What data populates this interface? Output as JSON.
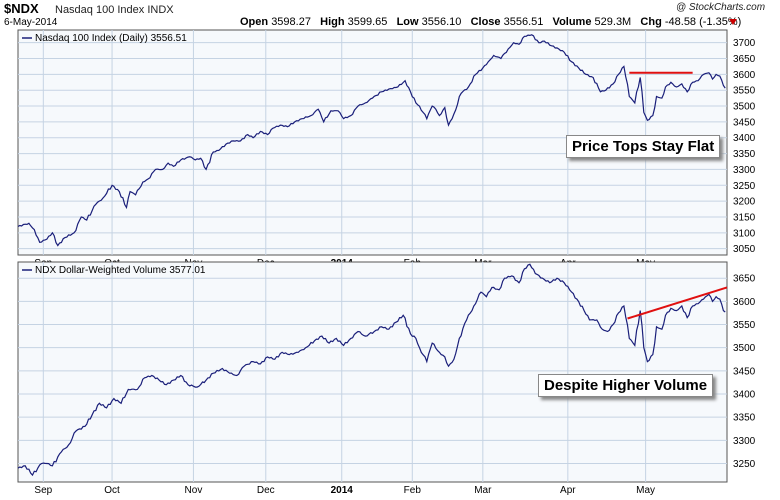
{
  "header": {
    "symbol": "$NDX",
    "name": "Nasdaq 100 Index",
    "exchange": "INDX",
    "date": "6-May-2014",
    "open_label": "Open",
    "open": "3598.27",
    "high_label": "High",
    "high": "3599.65",
    "low_label": "Low",
    "low": "3556.10",
    "close_label": "Close",
    "close": "3556.51",
    "volume_label": "Volume",
    "volume": "529.3M",
    "chg_label": "Chg",
    "chg": "-48.58 (-1.35%)",
    "watermark": "@ StockCharts.com"
  },
  "colors": {
    "grid": "#c5d3e3",
    "panel_bg": "#f6f9fc",
    "line": "#1a1f7a",
    "trend": "#e01010",
    "chg": "#cc0000"
  },
  "annotations": {
    "price": "Price Tops Stay Flat",
    "volume": "Despite Higher Volume"
  },
  "chart_data": [
    {
      "type": "line",
      "legend": "Nasdaq 100 Index (Daily) 3556.51",
      "x_label_days": [
        "Sep",
        "Oct",
        "Nov",
        "Dec",
        "2014",
        "Feb",
        "Mar",
        "Apr",
        "May"
      ],
      "x_label_idx": [
        14,
        52,
        97,
        137,
        179,
        218,
        257,
        304,
        347
      ],
      "ylim": [
        3030,
        3740
      ],
      "yticks": [
        3050,
        3100,
        3150,
        3200,
        3250,
        3300,
        3350,
        3400,
        3450,
        3500,
        3550,
        3600,
        3650,
        3700
      ],
      "trendline": {
        "x": [
          338,
          373
        ],
        "y": [
          3605,
          3605
        ]
      },
      "anchors": [
        [
          0,
          3120
        ],
        [
          6,
          3130
        ],
        [
          9,
          3110
        ],
        [
          12,
          3070
        ],
        [
          16,
          3080
        ],
        [
          19,
          3100
        ],
        [
          22,
          3060
        ],
        [
          26,
          3085
        ],
        [
          31,
          3100
        ],
        [
          35,
          3150
        ],
        [
          38,
          3140
        ],
        [
          43,
          3190
        ],
        [
          47,
          3210
        ],
        [
          52,
          3250
        ],
        [
          56,
          3230
        ],
        [
          60,
          3180
        ],
        [
          62,
          3230
        ],
        [
          65,
          3220
        ],
        [
          69,
          3260
        ],
        [
          72,
          3270
        ],
        [
          76,
          3300
        ],
        [
          80,
          3300
        ],
        [
          83,
          3320
        ],
        [
          86,
          3310
        ],
        [
          90,
          3330
        ],
        [
          95,
          3340
        ],
        [
          98,
          3330
        ],
        [
          101,
          3335
        ],
        [
          104,
          3300
        ],
        [
          108,
          3355
        ],
        [
          111,
          3360
        ],
        [
          115,
          3380
        ],
        [
          119,
          3390
        ],
        [
          123,
          3390
        ],
        [
          127,
          3410
        ],
        [
          130,
          3400
        ],
        [
          134,
          3420
        ],
        [
          138,
          3410
        ],
        [
          141,
          3430
        ],
        [
          145,
          3440
        ],
        [
          149,
          3435
        ],
        [
          153,
          3450
        ],
        [
          157,
          3460
        ],
        [
          162,
          3470
        ],
        [
          166,
          3490
        ],
        [
          169,
          3450
        ],
        [
          173,
          3485
        ],
        [
          177,
          3485
        ],
        [
          180,
          3460
        ],
        [
          184,
          3470
        ],
        [
          188,
          3500
        ],
        [
          192,
          3510
        ],
        [
          196,
          3525
        ],
        [
          201,
          3545
        ],
        [
          206,
          3555
        ],
        [
          210,
          3560
        ],
        [
          214,
          3580
        ],
        [
          217,
          3545
        ],
        [
          220,
          3510
        ],
        [
          222,
          3500
        ],
        [
          226,
          3460
        ],
        [
          229,
          3500
        ],
        [
          231,
          3490
        ],
        [
          233,
          3470
        ],
        [
          236,
          3495
        ],
        [
          238,
          3440
        ],
        [
          241,
          3475
        ],
        [
          245,
          3540
        ],
        [
          249,
          3560
        ],
        [
          253,
          3600
        ],
        [
          257,
          3620
        ],
        [
          260,
          3640
        ],
        [
          263,
          3660
        ],
        [
          267,
          3650
        ],
        [
          271,
          3680
        ],
        [
          274,
          3700
        ],
        [
          277,
          3695
        ],
        [
          280,
          3720
        ],
        [
          284,
          3725
        ],
        [
          288,
          3700
        ],
        [
          291,
          3705
        ],
        [
          295,
          3690
        ],
        [
          299,
          3680
        ],
        [
          302,
          3670
        ],
        [
          306,
          3640
        ],
        [
          310,
          3620
        ],
        [
          314,
          3600
        ],
        [
          318,
          3590
        ],
        [
          322,
          3545
        ],
        [
          325,
          3550
        ],
        [
          329,
          3570
        ],
        [
          332,
          3600
        ],
        [
          335,
          3625
        ],
        [
          338,
          3530
        ],
        [
          341,
          3510
        ],
        [
          344,
          3590
        ],
        [
          346,
          3480
        ],
        [
          348,
          3455
        ],
        [
          351,
          3470
        ],
        [
          353,
          3530
        ],
        [
          356,
          3525
        ],
        [
          358,
          3560
        ],
        [
          361,
          3575
        ],
        [
          364,
          3560
        ],
        [
          367,
          3570
        ],
        [
          370,
          3545
        ],
        [
          373,
          3575
        ],
        [
          376,
          3580
        ],
        [
          379,
          3600
        ],
        [
          382,
          3605
        ],
        [
          384,
          3585
        ],
        [
          386,
          3600
        ],
        [
          388,
          3595
        ],
        [
          390,
          3565
        ],
        [
          391,
          3556.51
        ]
      ]
    },
    {
      "type": "line",
      "legend": "NDX Dollar-Weighted Volume 3577.01",
      "x_label_days": [
        "Sep",
        "Oct",
        "Nov",
        "Dec",
        "2014",
        "Feb",
        "Mar",
        "Apr",
        "May"
      ],
      "x_label_idx": [
        14,
        52,
        97,
        137,
        179,
        218,
        257,
        304,
        347
      ],
      "ylim": [
        3210,
        3685
      ],
      "yticks": [
        3250,
        3300,
        3350,
        3400,
        3450,
        3500,
        3550,
        3600,
        3650
      ],
      "trendline": {
        "x": [
          337,
          392
        ],
        "y": [
          3563,
          3630
        ]
      },
      "anchors": [
        [
          0,
          3240
        ],
        [
          4,
          3245
        ],
        [
          8,
          3225
        ],
        [
          13,
          3250
        ],
        [
          16,
          3250
        ],
        [
          19,
          3245
        ],
        [
          24,
          3275
        ],
        [
          28,
          3290
        ],
        [
          32,
          3320
        ],
        [
          37,
          3330
        ],
        [
          41,
          3355
        ],
        [
          45,
          3380
        ],
        [
          49,
          3370
        ],
        [
          53,
          3390
        ],
        [
          57,
          3380
        ],
        [
          61,
          3410
        ],
        [
          66,
          3410
        ],
        [
          70,
          3435
        ],
        [
          74,
          3440
        ],
        [
          78,
          3430
        ],
        [
          82,
          3420
        ],
        [
          86,
          3430
        ],
        [
          90,
          3440
        ],
        [
          94,
          3420
        ],
        [
          99,
          3415
        ],
        [
          104,
          3430
        ],
        [
          108,
          3445
        ],
        [
          113,
          3455
        ],
        [
          117,
          3445
        ],
        [
          121,
          3440
        ],
        [
          125,
          3460
        ],
        [
          130,
          3470
        ],
        [
          134,
          3465
        ],
        [
          138,
          3480
        ],
        [
          142,
          3475
        ],
        [
          146,
          3490
        ],
        [
          150,
          3485
        ],
        [
          155,
          3490
        ],
        [
          159,
          3500
        ],
        [
          164,
          3515
        ],
        [
          168,
          3525
        ],
        [
          172,
          3510
        ],
        [
          176,
          3520
        ],
        [
          180,
          3505
        ],
        [
          184,
          3520
        ],
        [
          188,
          3535
        ],
        [
          192,
          3525
        ],
        [
          197,
          3535
        ],
        [
          201,
          3545
        ],
        [
          205,
          3540
        ],
        [
          209,
          3555
        ],
        [
          213,
          3570
        ],
        [
          217,
          3530
        ],
        [
          220,
          3520
        ],
        [
          222,
          3500
        ],
        [
          226,
          3470
        ],
        [
          229,
          3510
        ],
        [
          233,
          3490
        ],
        [
          236,
          3480
        ],
        [
          238,
          3460
        ],
        [
          241,
          3475
        ],
        [
          244,
          3520
        ],
        [
          248,
          3560
        ],
        [
          252,
          3590
        ],
        [
          256,
          3620
        ],
        [
          259,
          3610
        ],
        [
          262,
          3630
        ],
        [
          266,
          3625
        ],
        [
          269,
          3650
        ],
        [
          273,
          3655
        ],
        [
          277,
          3640
        ],
        [
          280,
          3670
        ],
        [
          283,
          3680
        ],
        [
          286,
          3660
        ],
        [
          290,
          3650
        ],
        [
          294,
          3640
        ],
        [
          298,
          3650
        ],
        [
          302,
          3640
        ],
        [
          305,
          3625
        ],
        [
          309,
          3605
        ],
        [
          313,
          3580
        ],
        [
          316,
          3560
        ],
        [
          320,
          3560
        ],
        [
          323,
          3540
        ],
        [
          326,
          3535
        ],
        [
          329,
          3550
        ],
        [
          332,
          3575
        ],
        [
          335,
          3590
        ],
        [
          338,
          3520
        ],
        [
          341,
          3505
        ],
        [
          344,
          3580
        ],
        [
          346,
          3500
        ],
        [
          348,
          3470
        ],
        [
          351,
          3485
        ],
        [
          353,
          3545
        ],
        [
          356,
          3540
        ],
        [
          358,
          3570
        ],
        [
          361,
          3585
        ],
        [
          364,
          3580
        ],
        [
          367,
          3590
        ],
        [
          370,
          3565
        ],
        [
          373,
          3590
        ],
        [
          376,
          3595
        ],
        [
          379,
          3605
        ],
        [
          382,
          3615
        ],
        [
          384,
          3600
        ],
        [
          386,
          3610
        ],
        [
          388,
          3605
        ],
        [
          390,
          3580
        ],
        [
          391,
          3577.01
        ]
      ]
    }
  ]
}
